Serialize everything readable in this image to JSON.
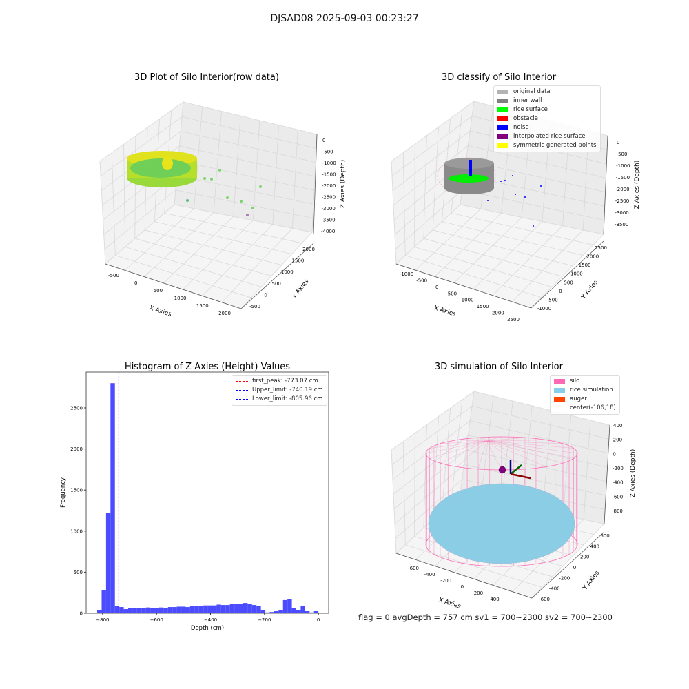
{
  "figure_title": "DJSAD08 2025-09-03 00:23:27",
  "status_line": "flag = 0     avgDepth = 757 cm  sv1 = 700~2300  sv2 = 700~2300",
  "chart_data": [
    {
      "type": "scatter",
      "title": "3D Plot of Silo Interior(row data)",
      "xlabel": "X Axies",
      "ylabel": "Y Axies",
      "zlabel": "Z Axies (Depth)",
      "xticks": [
        "-500",
        "0",
        "500",
        "1000",
        "1500",
        "2000"
      ],
      "yticks": [
        "-500",
        "0",
        "500",
        "1000",
        "1500",
        "2000"
      ],
      "zticks": [
        "0",
        "-500",
        "-1000",
        "-1500",
        "-2000",
        "-2500",
        "-3000",
        "-3500",
        "-4000"
      ],
      "grid": true,
      "colors": {
        "surface_low": "#6cce59",
        "surface_high": "#e6e419",
        "outlier": "#a87bb8"
      }
    },
    {
      "type": "scatter",
      "title": "3D classify of Silo Interior",
      "xlabel": "X Axies",
      "ylabel": "Y Axies",
      "zlabel": "Z Axies (Depth)",
      "xticks": [
        "-1000",
        "-500",
        "0",
        "500",
        "1000",
        "1500",
        "2000",
        "2500"
      ],
      "yticks": [
        "-1000",
        "-500",
        "0",
        "500",
        "1000",
        "1500",
        "2000",
        "2500"
      ],
      "zticks": [
        "0",
        "-500",
        "-1000",
        "-1500",
        "-2000",
        "-2500",
        "-3000",
        "-3500"
      ],
      "grid": true,
      "legend_position": "top-right",
      "legend": [
        {
          "label": "original data",
          "color": "#b3b3b3"
        },
        {
          "label": "inner wall",
          "color": "#808080"
        },
        {
          "label": "rice surface",
          "color": "#00ff00"
        },
        {
          "label": "obstacle",
          "color": "#ff0000"
        },
        {
          "label": "noise",
          "color": "#0000ff"
        },
        {
          "label": "interpolated rice surface",
          "color": "#800080"
        },
        {
          "label": "symmetric generated points",
          "color": "#ffff00"
        }
      ]
    },
    {
      "type": "bar",
      "title": "Histogram of Z-Axies (Height) Values",
      "xlabel": "Depth (cm)",
      "ylabel": "Frequency",
      "xlim": [
        -861,
        38
      ],
      "ylim": [
        0,
        2936
      ],
      "xticks": [
        -800,
        -600,
        -400,
        -200,
        0
      ],
      "yticks": [
        0,
        500,
        1000,
        1500,
        2000,
        2500
      ],
      "bin_start": -820,
      "bin_width": 16.4,
      "values": [
        40,
        280,
        1220,
        2800,
        90,
        75,
        50,
        65,
        60,
        65,
        65,
        70,
        65,
        65,
        70,
        65,
        75,
        75,
        80,
        80,
        75,
        85,
        90,
        90,
        95,
        95,
        95,
        105,
        100,
        100,
        115,
        115,
        110,
        125,
        115,
        100,
        85,
        40,
        10,
        15,
        25,
        40,
        160,
        175,
        65,
        40,
        90,
        25,
        10,
        25
      ],
      "bar_color": "#4b4bff",
      "vlines": [
        {
          "label": "first_peak: -773.07 cm",
          "x": -773.07,
          "color": "#ff0000"
        },
        {
          "label": "Upper_limit: -740.19 cm",
          "x": -740.19,
          "color": "#0000ff"
        },
        {
          "label": "Lower_limit: -805.96 cm",
          "x": -805.96,
          "color": "#0000ff"
        }
      ],
      "legend_position": "top-right"
    },
    {
      "type": "scatter",
      "title": "3D simulation of Silo Interior",
      "xlabel": "X Axies",
      "ylabel": "Y Axies",
      "zlabel": "Z Axies (Depth)",
      "xticks": [
        "-600",
        "-400",
        "-200",
        "0",
        "200",
        "400"
      ],
      "yticks": [
        "-600",
        "-400",
        "-200",
        "0",
        "200",
        "400",
        "600"
      ],
      "zticks": [
        "400",
        "200",
        "0",
        "-200",
        "-400",
        "-600",
        "-800"
      ],
      "grid": true,
      "legend_position": "top-right",
      "legend": [
        {
          "label": "silo",
          "color": "#ff69b4"
        },
        {
          "label": "rice simulation",
          "color": "#87ceeb"
        },
        {
          "label": "auger",
          "color": "#ff4500"
        },
        {
          "label": "center(-106,18)",
          "color": ""
        }
      ]
    }
  ]
}
